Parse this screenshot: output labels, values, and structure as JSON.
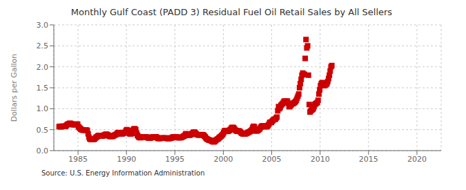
{
  "chart_data": {
    "type": "scatter",
    "title": "Monthly Gulf Coast (PADD 3) Residual Fuel Oil Retail Sales by All Sellers",
    "ylabel": "Dollars per Gallon",
    "source": "Source: U.S. Energy Information Administration",
    "color": "#cc0000",
    "marker": "square",
    "grid": true,
    "xlim": [
      1982.5,
      2022.5
    ],
    "ylim": [
      0.0,
      3.0
    ],
    "xticks": [
      1985,
      1990,
      1995,
      2000,
      2005,
      2010,
      2015,
      2020
    ],
    "yticks": [
      {
        "value": 0,
        "label": "0.0"
      },
      0.5,
      {
        "value": 1,
        "label": "1.0"
      },
      1.5,
      {
        "value": 2,
        "label": "2.0"
      },
      2.5,
      {
        "value": 3,
        "label": "3.0"
      }
    ],
    "x": [
      1983.0417,
      1983.125,
      1983.2083,
      1983.2917,
      1983.375,
      1983.4583,
      1983.5417,
      1983.625,
      1983.7083,
      1983.7917,
      1983.875,
      1983.9583,
      1984.0417,
      1984.125,
      1984.2083,
      1984.2917,
      1984.375,
      1984.4583,
      1984.5417,
      1984.625,
      1984.7083,
      1984.7917,
      1984.875,
      1984.9583,
      1985.0417,
      1985.125,
      1985.2083,
      1985.2917,
      1985.375,
      1985.4583,
      1985.5417,
      1985.625,
      1985.7083,
      1985.7917,
      1985.875,
      1985.9583,
      1986.0417,
      1986.125,
      1986.2083,
      1986.2917,
      1986.375,
      1986.4583,
      1986.5417,
      1986.625,
      1986.7083,
      1986.7917,
      1986.875,
      1986.9583,
      1987.0417,
      1987.125,
      1987.2083,
      1987.2917,
      1987.375,
      1987.4583,
      1987.5417,
      1987.625,
      1987.7083,
      1987.7917,
      1987.875,
      1987.9583,
      1988.0417,
      1988.125,
      1988.2083,
      1988.2917,
      1988.375,
      1988.4583,
      1988.5417,
      1988.625,
      1988.7083,
      1988.7917,
      1988.875,
      1988.9583,
      1989.0417,
      1989.125,
      1989.2083,
      1989.2917,
      1989.375,
      1989.4583,
      1989.5417,
      1989.625,
      1989.7083,
      1989.7917,
      1989.875,
      1989.9583,
      1990.0417,
      1990.125,
      1990.2083,
      1990.2917,
      1990.375,
      1990.4583,
      1990.5417,
      1990.625,
      1990.7083,
      1990.7917,
      1990.875,
      1990.9583,
      1991.0417,
      1991.125,
      1991.2083,
      1991.2917,
      1991.375,
      1991.4583,
      1991.5417,
      1991.625,
      1991.7083,
      1991.7917,
      1991.875,
      1991.9583,
      1992.0417,
      1992.125,
      1992.2083,
      1992.2917,
      1992.375,
      1992.4583,
      1992.5417,
      1992.625,
      1992.7083,
      1992.7917,
      1992.875,
      1992.9583,
      1993.0417,
      1993.125,
      1993.2083,
      1993.2917,
      1993.375,
      1993.4583,
      1993.5417,
      1993.625,
      1993.7083,
      1993.7917,
      1993.875,
      1993.9583,
      1994.0417,
      1994.125,
      1994.2083,
      1994.2917,
      1994.375,
      1994.4583,
      1994.5417,
      1994.625,
      1994.7083,
      1994.7917,
      1994.875,
      1994.9583,
      1995.0417,
      1995.125,
      1995.2083,
      1995.2917,
      1995.375,
      1995.4583,
      1995.5417,
      1995.625,
      1995.7083,
      1995.7917,
      1995.875,
      1995.9583,
      1996.0417,
      1996.125,
      1996.2083,
      1996.2917,
      1996.375,
      1996.4583,
      1996.5417,
      1996.625,
      1996.7083,
      1996.7917,
      1996.875,
      1996.9583,
      1997.0417,
      1997.125,
      1997.2083,
      1997.2917,
      1997.375,
      1997.4583,
      1997.5417,
      1997.625,
      1997.7083,
      1997.7917,
      1997.875,
      1997.9583,
      1998.0417,
      1998.125,
      1998.2083,
      1998.2917,
      1998.375,
      1998.4583,
      1998.5417,
      1998.625,
      1998.7083,
      1998.7917,
      1998.875,
      1998.9583,
      1999.0417,
      1999.125,
      1999.2083,
      1999.2917,
      1999.375,
      1999.4583,
      1999.5417,
      1999.625,
      1999.7083,
      1999.7917,
      1999.875,
      1999.9583,
      2000.0417,
      2000.125,
      2000.2083,
      2000.2917,
      2000.375,
      2000.4583,
      2000.5417,
      2000.625,
      2000.7083,
      2000.7917,
      2000.875,
      2000.9583,
      2001.0417,
      2001.125,
      2001.2083,
      2001.2917,
      2001.375,
      2001.4583,
      2001.5417,
      2001.625,
      2001.7083,
      2001.7917,
      2001.875,
      2001.9583,
      2002.0417,
      2002.125,
      2002.2083,
      2002.2917,
      2002.375,
      2002.4583,
      2002.5417,
      2002.625,
      2002.7083,
      2002.7917,
      2002.875,
      2002.9583,
      2003.0417,
      2003.125,
      2003.2083,
      2003.2917,
      2003.375,
      2003.4583,
      2003.5417,
      2003.625,
      2003.7083,
      2003.7917,
      2003.875,
      2003.9583,
      2004.0417,
      2004.125,
      2004.2083,
      2004.2917,
      2004.375,
      2004.4583,
      2004.5417,
      2004.625,
      2004.7083,
      2004.7917,
      2004.875,
      2004.9583,
      2005.0417,
      2005.125,
      2005.2083,
      2005.2917,
      2005.375,
      2005.4583,
      2005.5417,
      2005.625,
      2005.7083,
      2005.7917,
      2005.875,
      2005.9583,
      2006.0417,
      2006.125,
      2006.2083,
      2006.2917,
      2006.375,
      2006.4583,
      2006.5417,
      2006.625,
      2006.7083,
      2006.7917,
      2006.875,
      2006.9583,
      2007.0417,
      2007.125,
      2007.2083,
      2007.2917,
      2007.375,
      2007.4583,
      2007.5417,
      2007.625,
      2007.7083,
      2007.7917,
      2007.875,
      2007.9583,
      2008.0417,
      2008.125,
      2008.2083,
      2008.2917,
      2008.375,
      2008.4583,
      2008.5417,
      2008.625,
      2008.7083,
      2008.7917,
      2008.875,
      2008.9583,
      2009.0417,
      2009.125,
      2009.2083,
      2009.2917,
      2009.375,
      2009.4583,
      2009.5417,
      2009.625,
      2009.7083,
      2009.7917,
      2009.875,
      2009.9583,
      2010.0417,
      2010.125,
      2010.2083,
      2010.2917,
      2010.375,
      2010.4583,
      2010.5417,
      2010.625,
      2010.7083,
      2010.7917,
      2010.875,
      2010.9583,
      2011.0417,
      2011.125,
      2011.2083
    ],
    "values": [
      0.57,
      0.58,
      0.57,
      0.57,
      0.58,
      0.58,
      0.58,
      0.58,
      0.58,
      0.6,
      0.62,
      0.63,
      0.64,
      0.65,
      0.65,
      0.64,
      0.63,
      0.62,
      0.62,
      0.62,
      0.62,
      0.63,
      0.63,
      0.63,
      0.57,
      0.55,
      0.53,
      0.51,
      0.5,
      0.49,
      0.49,
      0.49,
      0.49,
      0.49,
      0.49,
      0.48,
      0.4,
      0.32,
      0.28,
      0.27,
      0.27,
      0.27,
      0.27,
      0.27,
      0.28,
      0.3,
      0.32,
      0.33,
      0.35,
      0.36,
      0.36,
      0.35,
      0.35,
      0.35,
      0.35,
      0.36,
      0.37,
      0.38,
      0.39,
      0.39,
      0.38,
      0.36,
      0.35,
      0.34,
      0.34,
      0.34,
      0.34,
      0.35,
      0.36,
      0.37,
      0.38,
      0.39,
      0.41,
      0.43,
      0.43,
      0.42,
      0.41,
      0.4,
      0.4,
      0.41,
      0.42,
      0.43,
      0.44,
      0.48,
      0.5,
      0.47,
      0.43,
      0.41,
      0.4,
      0.4,
      0.41,
      0.48,
      0.5,
      0.52,
      0.52,
      0.5,
      0.42,
      0.37,
      0.34,
      0.32,
      0.31,
      0.31,
      0.32,
      0.33,
      0.33,
      0.33,
      0.33,
      0.33,
      0.32,
      0.32,
      0.31,
      0.3,
      0.3,
      0.3,
      0.31,
      0.32,
      0.32,
      0.33,
      0.33,
      0.33,
      0.33,
      0.32,
      0.3,
      0.29,
      0.29,
      0.29,
      0.3,
      0.3,
      0.3,
      0.3,
      0.3,
      0.3,
      0.3,
      0.3,
      0.29,
      0.29,
      0.29,
      0.29,
      0.3,
      0.3,
      0.31,
      0.32,
      0.33,
      0.33,
      0.33,
      0.33,
      0.32,
      0.31,
      0.31,
      0.31,
      0.31,
      0.31,
      0.32,
      0.33,
      0.34,
      0.35,
      0.37,
      0.4,
      0.4,
      0.38,
      0.37,
      0.37,
      0.37,
      0.38,
      0.39,
      0.41,
      0.43,
      0.44,
      0.44,
      0.42,
      0.4,
      0.38,
      0.38,
      0.37,
      0.37,
      0.38,
      0.38,
      0.38,
      0.38,
      0.37,
      0.35,
      0.33,
      0.3,
      0.28,
      0.27,
      0.26,
      0.25,
      0.25,
      0.24,
      0.23,
      0.22,
      0.21,
      0.21,
      0.22,
      0.24,
      0.26,
      0.27,
      0.28,
      0.3,
      0.32,
      0.33,
      0.35,
      0.37,
      0.39,
      0.43,
      0.47,
      0.48,
      0.47,
      0.46,
      0.46,
      0.47,
      0.48,
      0.5,
      0.52,
      0.55,
      0.55,
      0.55,
      0.53,
      0.5,
      0.48,
      0.47,
      0.46,
      0.47,
      0.47,
      0.46,
      0.44,
      0.42,
      0.41,
      0.4,
      0.4,
      0.4,
      0.4,
      0.41,
      0.42,
      0.43,
      0.44,
      0.45,
      0.46,
      0.48,
      0.5,
      0.55,
      0.58,
      0.57,
      0.5,
      0.47,
      0.47,
      0.48,
      0.49,
      0.51,
      0.53,
      0.56,
      0.58,
      0.59,
      0.59,
      0.59,
      0.58,
      0.57,
      0.57,
      0.58,
      0.6,
      0.63,
      0.67,
      0.68,
      0.67,
      0.7,
      0.72,
      0.74,
      0.75,
      0.75,
      0.78,
      0.8,
      0.95,
      1.05,
      1.0,
      1.03,
      1.08,
      1.1,
      1.12,
      1.15,
      1.18,
      1.18,
      1.17,
      1.18,
      1.18,
      1.13,
      1.05,
      1.05,
      1.08,
      1.1,
      1.12,
      1.12,
      1.14,
      1.15,
      1.17,
      1.2,
      1.25,
      1.3,
      1.35,
      1.5,
      1.6,
      1.7,
      1.8,
      1.85,
      1.82,
      1.82,
      2.2,
      2.65,
      2.45,
      2.5,
      1.8,
      1.1,
      0.92,
      0.95,
      0.97,
      0.98,
      1.0,
      1.05,
      1.1,
      1.12,
      1.13,
      1.15,
      1.2,
      1.35,
      1.45,
      1.55,
      1.6,
      1.62,
      1.62,
      1.55,
      1.55,
      1.57,
      1.58,
      1.6,
      1.65,
      1.72,
      1.8,
      1.9,
      2.0,
      2.03
    ]
  }
}
